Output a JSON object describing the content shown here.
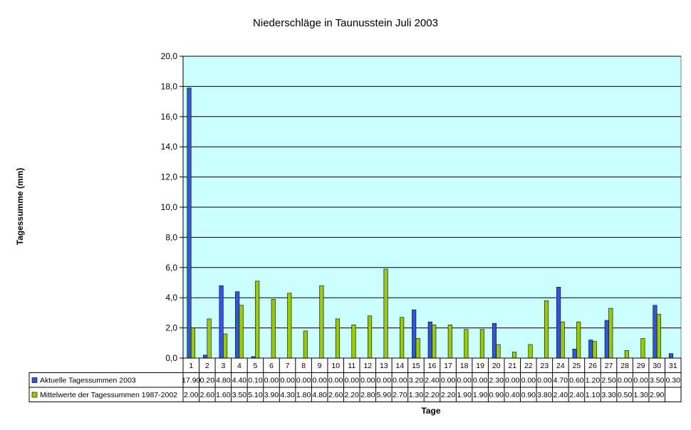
{
  "chart_data": {
    "type": "bar",
    "title": "Niederschläge in Taunusstein Juli 2003",
    "xlabel": "Tage",
    "ylabel": "Tagessumme (mm)",
    "ylim": [
      0,
      20
    ],
    "yticks": [
      "0,0",
      "2,0",
      "4,0",
      "6,0",
      "8,0",
      "10,0",
      "12,0",
      "14,0",
      "16,0",
      "18,0",
      "20,0"
    ],
    "grid": true,
    "legend": "data-table-left",
    "categories": [
      "1",
      "2",
      "3",
      "4",
      "5",
      "6",
      "7",
      "8",
      "9",
      "10",
      "11",
      "12",
      "13",
      "14",
      "15",
      "16",
      "17",
      "18",
      "19",
      "20",
      "21",
      "22",
      "23",
      "24",
      "25",
      "26",
      "27",
      "28",
      "29",
      "30",
      "31"
    ],
    "series": [
      {
        "name": "Aktuelle Tagessummen  2003",
        "color": "#3355dd",
        "values": [
          17.9,
          0.2,
          4.8,
          4.4,
          0.1,
          0.0,
          0.0,
          0.0,
          0.0,
          0.0,
          0.0,
          0.0,
          0.0,
          0.0,
          3.2,
          2.4,
          0.0,
          0.0,
          0.0,
          2.3,
          0.0,
          0.0,
          0.0,
          4.7,
          0.6,
          1.2,
          2.5,
          0.0,
          0.0,
          3.5,
          0.3
        ],
        "labels": [
          "17.90",
          "0.20",
          "4.80",
          "4.40",
          "0.10",
          "0.00",
          "0.00",
          "0.00",
          "0.00",
          "0.00",
          "0.00",
          "0.00",
          "0.00",
          "0.00",
          "3.20",
          "2.40",
          "0.00",
          "0.00",
          "0.00",
          "2.30",
          "0.00",
          "0.00",
          "0.00",
          "4.70",
          "0.60",
          "1.20",
          "2.50",
          "0.00",
          "0.00",
          "3.50",
          "0.30"
        ]
      },
      {
        "name": "Mittelwerte der Tagessummen 1987-2002",
        "color": "#99cc00",
        "values": [
          2.0,
          2.6,
          1.6,
          3.5,
          5.1,
          3.9,
          4.3,
          1.8,
          4.8,
          2.6,
          2.2,
          2.8,
          5.9,
          2.7,
          1.3,
          2.2,
          2.2,
          1.9,
          1.9,
          0.9,
          0.4,
          0.9,
          3.8,
          2.4,
          2.4,
          1.1,
          3.3,
          0.5,
          1.3,
          2.9,
          null
        ],
        "labels": [
          "2.00",
          "2.60",
          "1.60",
          "3.50",
          "5.10",
          "3.90",
          "4.30",
          "1.80",
          "4.80",
          "2.60",
          "2.20",
          "2.80",
          "5.90",
          "2.70",
          "1.30",
          "2.20",
          "2.20",
          "1.90",
          "1.90",
          "0.90",
          "0.40",
          "0.90",
          "3.80",
          "2.40",
          "2.40",
          "1.10",
          "3.30",
          "0.50",
          "1.30",
          "2.90",
          ""
        ]
      }
    ],
    "colors": {
      "plot_background": "#ccffff",
      "gridline": "#000000"
    }
  }
}
